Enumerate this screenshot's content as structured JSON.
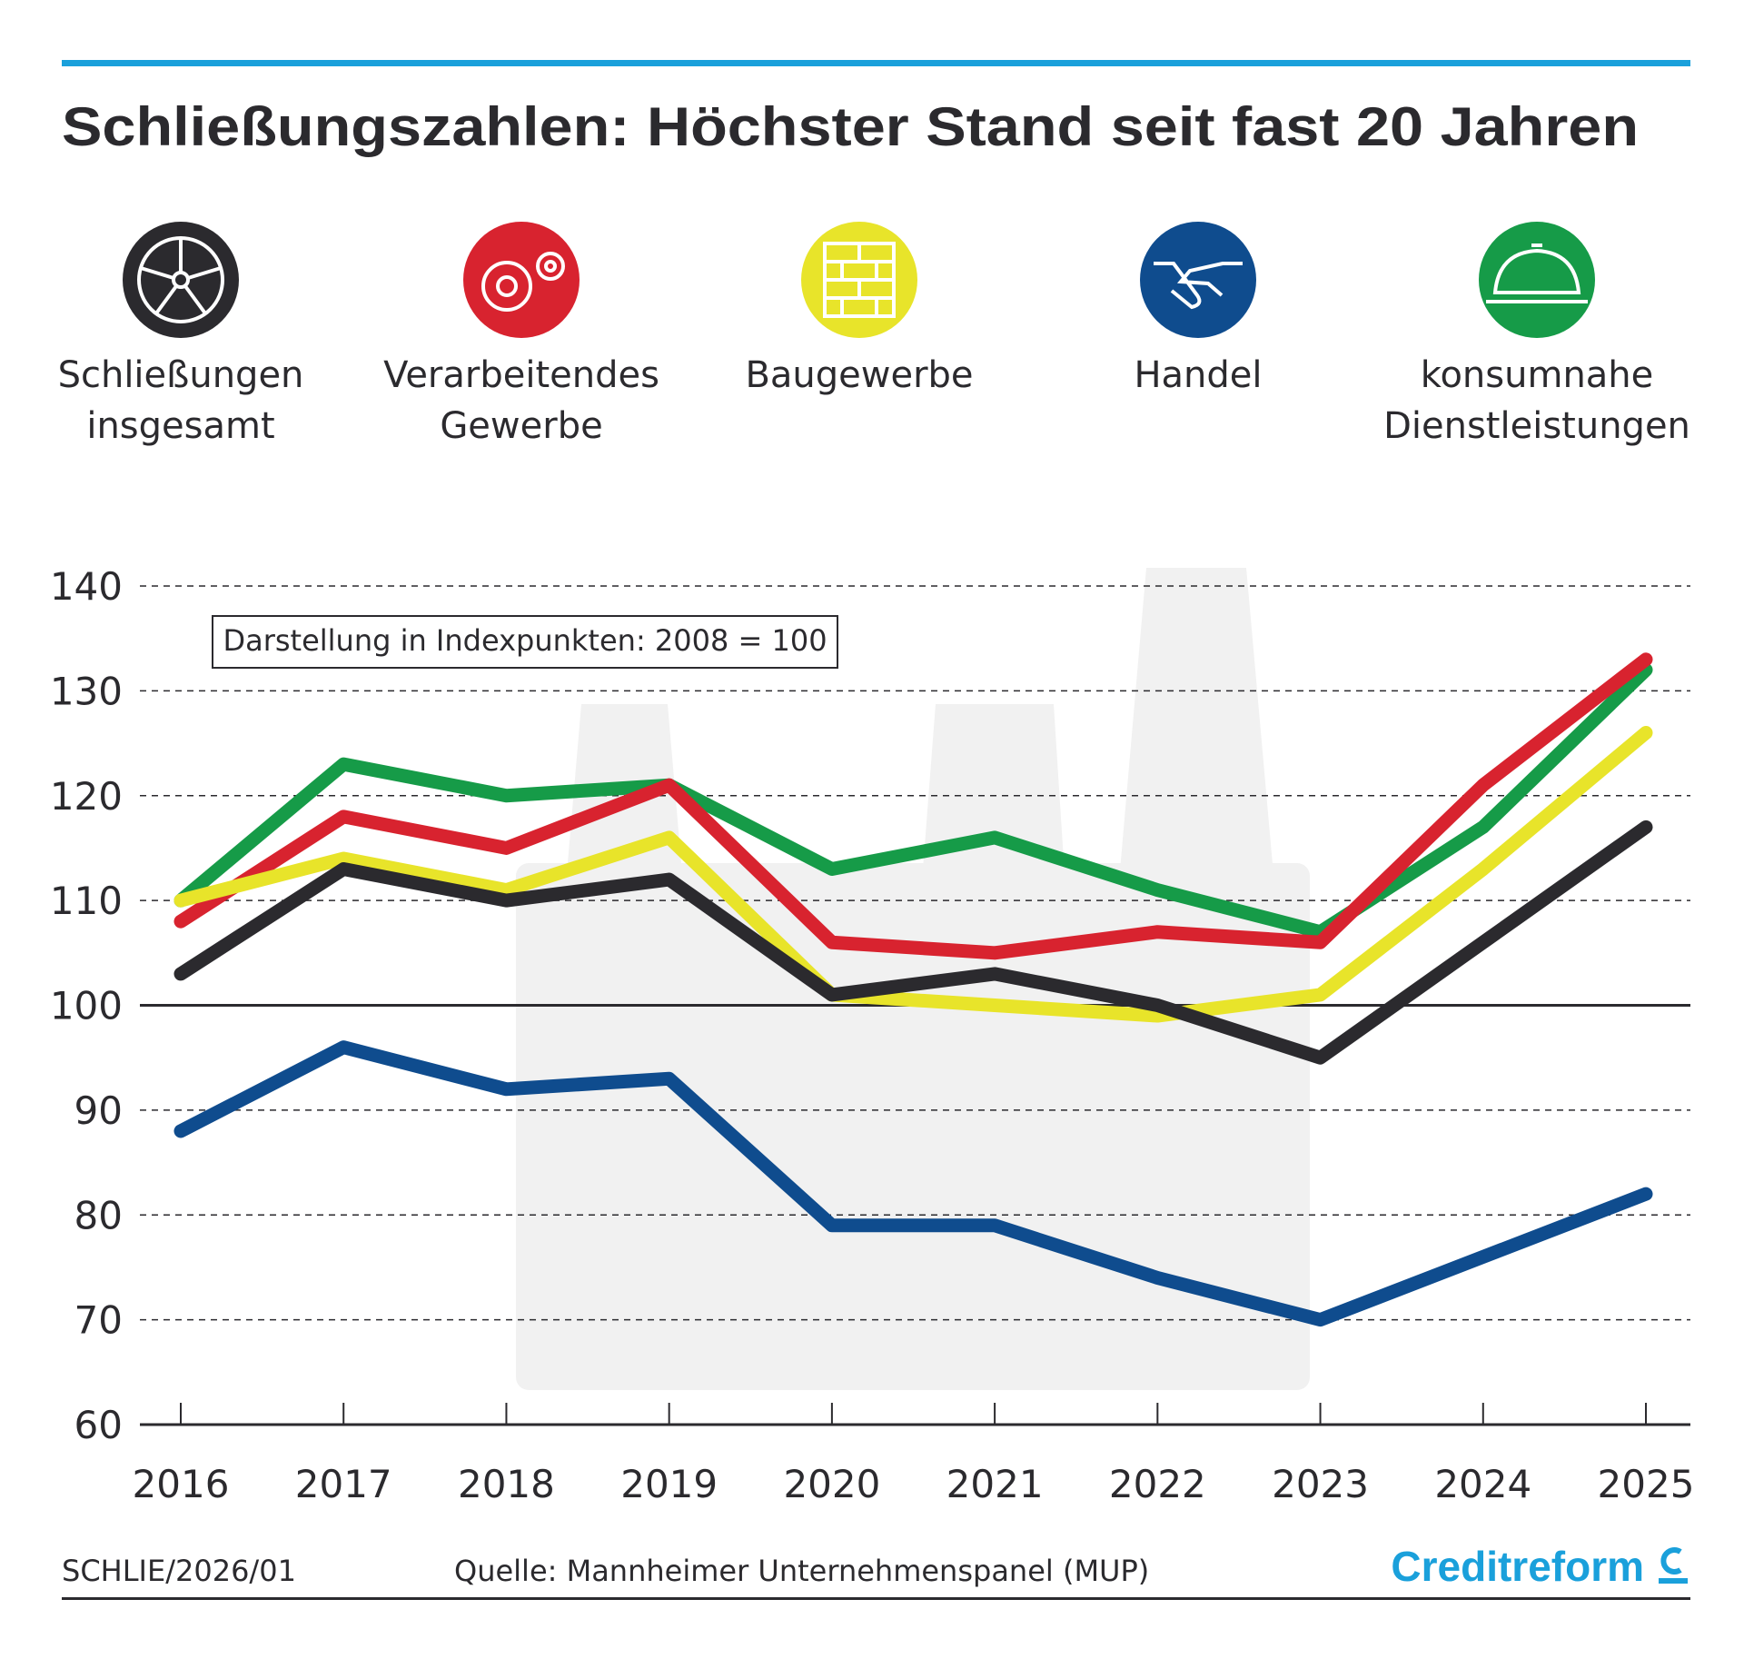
{
  "title": "Schließungszahlen: Höchster Stand seit fast 20 Jahren",
  "chart_data": {
    "type": "line",
    "note": "Darstellung in Indexpunkten: 2008 = 100",
    "categories": [
      "2016",
      "2017",
      "2018",
      "2019",
      "2020",
      "2021",
      "2022",
      "2023",
      "2024",
      "2025"
    ],
    "series": [
      {
        "name": "Schließungen insgesamt",
        "color": "#2b2a2e",
        "values": [
          103,
          113,
          110,
          112,
          101,
          103,
          100,
          95,
          106,
          117
        ]
      },
      {
        "name": "Verarbeitendes Gewerbe",
        "color": "#d8232f",
        "values": [
          108,
          118,
          115,
          121,
          106,
          105,
          107,
          106,
          121,
          133
        ]
      },
      {
        "name": "Baugewerbe",
        "color": "#e8e42a",
        "values": [
          110,
          114,
          111,
          116,
          101,
          100,
          99,
          101,
          113,
          126
        ]
      },
      {
        "name": "Handel",
        "color": "#0f4c8e",
        "values": [
          88,
          96,
          92,
          93,
          79,
          79,
          74,
          70,
          76,
          82
        ]
      },
      {
        "name": "konsumnahe Dienstleistungen",
        "color": "#169b48",
        "values": [
          110,
          123,
          120,
          121,
          113,
          116,
          111,
          107,
          117,
          132
        ]
      }
    ],
    "ylim": [
      60,
      140
    ],
    "yticks": [
      60,
      70,
      80,
      90,
      100,
      110,
      120,
      130,
      140
    ],
    "reference_line": 100,
    "grid": true
  },
  "footer": {
    "code": "SCHLIE/2026/01",
    "source": "Quelle: Mannheimer Unternehmenspanel (MUP)",
    "brand": "Creditreform"
  }
}
